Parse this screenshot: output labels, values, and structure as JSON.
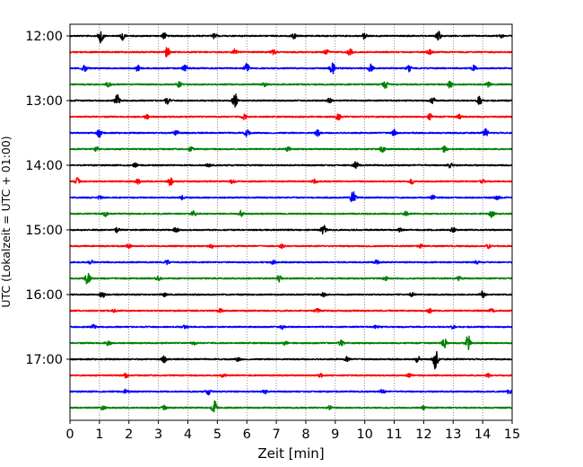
{
  "chart_data": {
    "type": "line",
    "title": "",
    "xlabel": "Zeit  [min]",
    "ylabel": "UTC (Lokalzeit = UTC + 01:00)",
    "xlim": [
      0,
      15
    ],
    "x_ticks": [
      0,
      1,
      2,
      3,
      4,
      5,
      6,
      7,
      8,
      9,
      10,
      11,
      12,
      13,
      14,
      15
    ],
    "y_tick_labels": [
      "12:00",
      "13:00",
      "14:00",
      "15:00",
      "16:00",
      "17:00"
    ],
    "x_grid": "dotted vertical lines at every minute",
    "row_interval_minutes": 15,
    "trace_colors": [
      "#000000",
      "#ff0000",
      "#0000ff",
      "#008000"
    ],
    "traces": [
      {
        "start": "12:00",
        "color": "#000000",
        "events": [
          [
            1.05,
            2.0
          ],
          [
            1.8,
            1.1
          ],
          [
            3.2,
            0.7
          ],
          [
            4.9,
            0.6
          ],
          [
            7.6,
            0.7
          ],
          [
            10.0,
            0.9
          ],
          [
            12.5,
            1.1
          ],
          [
            14.6,
            0.6
          ]
        ]
      },
      {
        "start": "12:15",
        "color": "#ff0000",
        "events": [
          [
            3.3,
            1.6
          ],
          [
            5.6,
            0.7
          ],
          [
            6.9,
            0.6
          ],
          [
            8.7,
            0.7
          ],
          [
            9.5,
            0.9
          ],
          [
            12.2,
            0.6
          ]
        ]
      },
      {
        "start": "12:30",
        "color": "#0000ff",
        "events": [
          [
            0.5,
            0.8
          ],
          [
            2.3,
            0.8
          ],
          [
            3.9,
            1.0
          ],
          [
            6.0,
            1.2
          ],
          [
            8.9,
            1.5
          ],
          [
            10.2,
            1.0
          ],
          [
            11.5,
            0.8
          ],
          [
            13.7,
            0.7
          ]
        ]
      },
      {
        "start": "12:45",
        "color": "#008000",
        "events": [
          [
            1.3,
            0.6
          ],
          [
            3.7,
            0.7
          ],
          [
            6.6,
            0.5
          ],
          [
            10.7,
            1.0
          ],
          [
            12.9,
            1.0
          ],
          [
            14.2,
            0.6
          ]
        ]
      },
      {
        "start": "13:00",
        "color": "#000000",
        "events": [
          [
            1.6,
            1.5
          ],
          [
            3.3,
            0.9
          ],
          [
            5.6,
            1.9
          ],
          [
            8.8,
            0.8
          ],
          [
            12.3,
            1.0
          ],
          [
            13.9,
            1.7
          ]
        ]
      },
      {
        "start": "13:15",
        "color": "#ff0000",
        "events": [
          [
            2.6,
            0.6
          ],
          [
            5.9,
            0.7
          ],
          [
            9.1,
            0.8
          ],
          [
            12.2,
            0.8
          ],
          [
            13.2,
            0.6
          ]
        ]
      },
      {
        "start": "13:30",
        "color": "#0000ff",
        "events": [
          [
            1.0,
            1.1
          ],
          [
            3.6,
            0.9
          ],
          [
            6.0,
            0.9
          ],
          [
            8.4,
            0.9
          ],
          [
            11.0,
            0.9
          ],
          [
            14.1,
            1.0
          ]
        ]
      },
      {
        "start": "13:45",
        "color": "#008000",
        "events": [
          [
            0.9,
            0.6
          ],
          [
            4.1,
            0.6
          ],
          [
            7.4,
            0.6
          ],
          [
            10.6,
            0.8
          ],
          [
            12.7,
            0.7
          ]
        ]
      },
      {
        "start": "14:00",
        "color": "#000000",
        "events": [
          [
            2.2,
            0.5
          ],
          [
            4.7,
            0.6
          ],
          [
            9.7,
            0.9
          ],
          [
            12.9,
            0.6
          ]
        ]
      },
      {
        "start": "14:15",
        "color": "#ff0000",
        "events": [
          [
            0.25,
            0.9
          ],
          [
            2.3,
            0.7
          ],
          [
            3.4,
            1.1
          ],
          [
            5.5,
            0.6
          ],
          [
            8.3,
            0.5
          ],
          [
            11.6,
            0.6
          ],
          [
            14.0,
            0.5
          ]
        ]
      },
      {
        "start": "14:30",
        "color": "#0000ff",
        "events": [
          [
            1.0,
            0.5
          ],
          [
            3.8,
            0.5
          ],
          [
            9.6,
            1.8
          ],
          [
            12.3,
            0.6
          ],
          [
            14.5,
            0.5
          ]
        ]
      },
      {
        "start": "14:45",
        "color": "#008000",
        "events": [
          [
            1.2,
            0.6
          ],
          [
            4.2,
            0.7
          ],
          [
            5.8,
            0.7
          ],
          [
            11.4,
            0.6
          ],
          [
            14.3,
            0.9
          ]
        ]
      },
      {
        "start": "15:00",
        "color": "#000000",
        "events": [
          [
            1.6,
            0.6
          ],
          [
            3.6,
            0.6
          ],
          [
            8.6,
            1.2
          ],
          [
            11.2,
            0.5
          ],
          [
            13.0,
            0.6
          ]
        ]
      },
      {
        "start": "15:15",
        "color": "#ff0000",
        "events": [
          [
            2.0,
            0.5
          ],
          [
            4.8,
            0.5
          ],
          [
            7.2,
            0.5
          ],
          [
            11.9,
            0.5
          ],
          [
            14.2,
            0.5
          ]
        ]
      },
      {
        "start": "15:30",
        "color": "#0000ff",
        "events": [
          [
            0.7,
            0.6
          ],
          [
            3.3,
            0.5
          ],
          [
            6.9,
            0.5
          ],
          [
            10.4,
            0.5
          ],
          [
            13.8,
            0.5
          ]
        ]
      },
      {
        "start": "15:45",
        "color": "#008000",
        "events": [
          [
            0.6,
            1.7
          ],
          [
            3.0,
            0.5
          ],
          [
            7.1,
            0.8
          ],
          [
            10.7,
            0.5
          ],
          [
            13.2,
            0.5
          ]
        ]
      },
      {
        "start": "16:00",
        "color": "#000000",
        "events": [
          [
            1.1,
            0.8
          ],
          [
            3.2,
            0.5
          ],
          [
            8.6,
            0.5
          ],
          [
            11.6,
            0.5
          ],
          [
            14.0,
            0.9
          ]
        ]
      },
      {
        "start": "16:15",
        "color": "#ff0000",
        "events": [
          [
            1.5,
            0.4
          ],
          [
            5.1,
            0.5
          ],
          [
            8.4,
            0.5
          ],
          [
            12.2,
            0.5
          ],
          [
            14.3,
            0.4
          ]
        ]
      },
      {
        "start": "16:30",
        "color": "#0000ff",
        "events": [
          [
            0.8,
            0.5
          ],
          [
            3.9,
            0.5
          ],
          [
            7.2,
            0.5
          ],
          [
            10.4,
            0.5
          ],
          [
            13.0,
            0.5
          ]
        ]
      },
      {
        "start": "16:45",
        "color": "#008000",
        "events": [
          [
            1.3,
            0.6
          ],
          [
            4.2,
            0.5
          ],
          [
            7.3,
            0.5
          ],
          [
            9.2,
            0.7
          ],
          [
            12.7,
            1.2
          ],
          [
            13.5,
            2.2
          ]
        ]
      },
      {
        "start": "17:00",
        "color": "#000000",
        "events": [
          [
            3.2,
            0.8
          ],
          [
            5.7,
            0.6
          ],
          [
            9.4,
            0.6
          ],
          [
            11.8,
            0.8
          ],
          [
            12.4,
            2.6
          ]
        ]
      },
      {
        "start": "17:15",
        "color": "#ff0000",
        "events": [
          [
            1.9,
            0.5
          ],
          [
            5.2,
            0.5
          ],
          [
            8.5,
            0.6
          ],
          [
            11.5,
            0.6
          ],
          [
            14.2,
            0.5
          ]
        ]
      },
      {
        "start": "17:30",
        "color": "#0000ff",
        "events": [
          [
            1.9,
            0.5
          ],
          [
            4.7,
            0.8
          ],
          [
            6.6,
            0.6
          ],
          [
            10.6,
            0.6
          ],
          [
            14.9,
            0.6
          ]
        ]
      },
      {
        "start": "17:45",
        "color": "#008000",
        "events": [
          [
            1.1,
            0.5
          ],
          [
            3.2,
            0.5
          ],
          [
            4.9,
            1.8
          ],
          [
            8.8,
            0.5
          ],
          [
            12.0,
            0.5
          ]
        ]
      }
    ]
  }
}
